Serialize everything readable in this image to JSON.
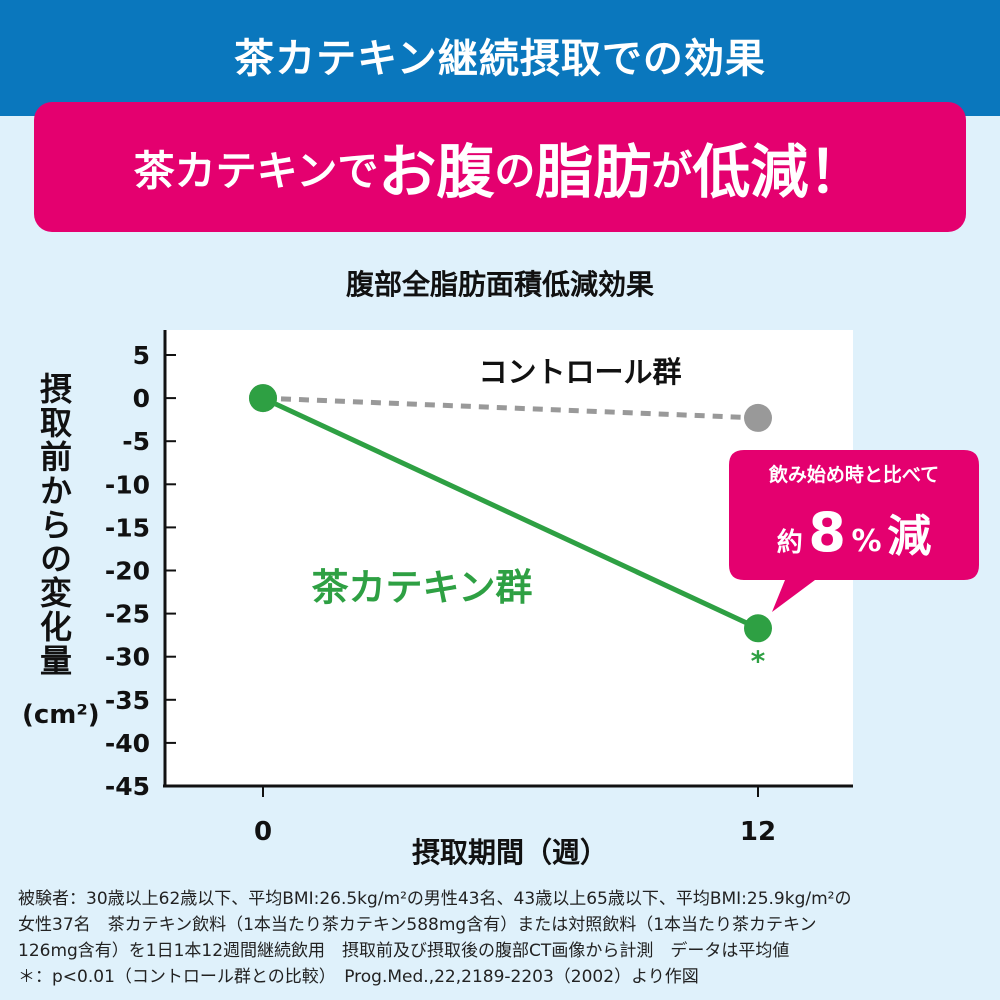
{
  "header": {
    "title": "茶カテキン継続摂取での効果"
  },
  "banner": {
    "part1": "茶カテキンで",
    "part2": "お腹",
    "part3": "の",
    "part4": "脂肪",
    "part5": "が",
    "part6": "低減！"
  },
  "chart_data": {
    "type": "line",
    "title": "腹部全脂肪面積低減効果",
    "xlabel": "摂取期間（週）",
    "ylabel": "摂取前からの変化量",
    "ylabel_unit": "(cm²)",
    "x": [
      0,
      12
    ],
    "x_tick_labels": [
      "0",
      "12"
    ],
    "y_ticks": [
      5,
      0,
      -5,
      -10,
      -15,
      -20,
      -25,
      -30,
      -35,
      -40,
      -45
    ],
    "ylim": [
      -45,
      5
    ],
    "grid": false,
    "series": [
      {
        "name": "コントロール群",
        "values": [
          0,
          -2.3
        ],
        "color": "#999999",
        "style": "dashed"
      },
      {
        "name": "茶カテキン群",
        "values": [
          0,
          -26.7
        ],
        "color": "#2ea043",
        "style": "solid",
        "significance_marker": "*"
      }
    ],
    "annotation": {
      "line1": "飲み始め時と比べて",
      "prefix": "約",
      "number": "8",
      "percent": "%",
      "suffix": "減"
    }
  },
  "colors": {
    "header_blue": "#0a77bd",
    "banner_pink": "#e4006f",
    "catechin_green": "#2ea043",
    "control_gray": "#999999"
  },
  "footnote": {
    "line1": "被験者：30歳以上62歳以下、平均BMI:26.5kg/m²の男性43名、43歳以上65歳以下、平均BMI:25.9kg/m²の",
    "line2": "女性37名　茶カテキン飲料（1本当たり茶カテキン588mg含有）または対照飲料（1本当たり茶カテキン",
    "line3": "126mg含有）を1日1本12週間継続飲用　摂取前及び摂取後の腹部CT画像から計測　データは平均値",
    "line4": "＊：p<0.01（コントロール群との比較）　Prog.Med.,22,2189-2203（2002）より作図"
  }
}
